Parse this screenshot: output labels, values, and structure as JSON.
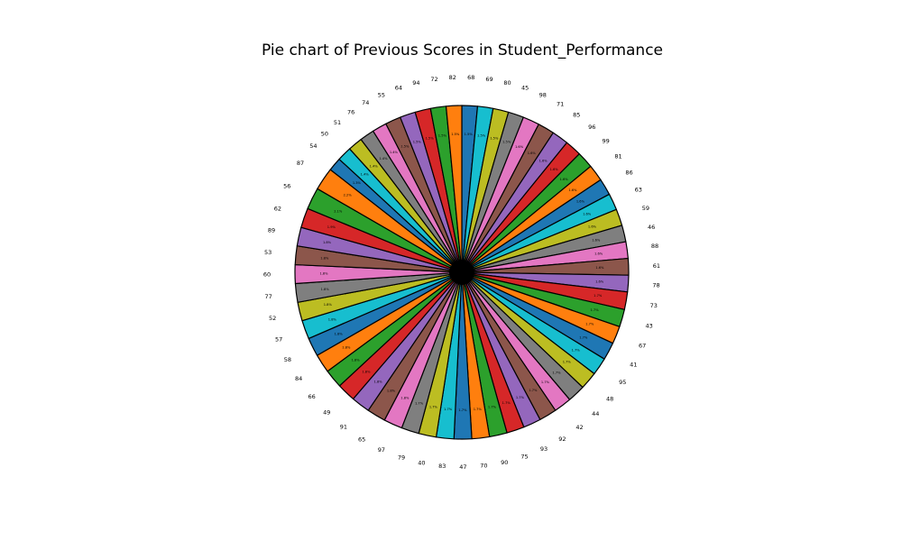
{
  "chart_data": {
    "type": "pie",
    "title": "Pie chart of Previous Scores in Student_Performance",
    "categories": [
      "68",
      "69",
      "80",
      "45",
      "98",
      "71",
      "85",
      "96",
      "99",
      "81",
      "86",
      "63",
      "59",
      "46",
      "88",
      "61",
      "78",
      "73",
      "43",
      "67",
      "41",
      "95",
      "48",
      "44",
      "42",
      "92",
      "93",
      "75",
      "90",
      "70",
      "47",
      "83",
      "40",
      "79",
      "97",
      "65",
      "91",
      "49",
      "66",
      "84",
      "58",
      "57",
      "52",
      "77",
      "60",
      "53",
      "89",
      "62",
      "56",
      "87",
      "54",
      "50",
      "51",
      "76",
      "74",
      "55",
      "64",
      "94",
      "72",
      "82"
    ],
    "values": [
      1.5,
      1.5,
      1.5,
      1.5,
      1.6,
      1.6,
      1.6,
      1.6,
      1.6,
      1.6,
      1.6,
      1.6,
      1.6,
      1.6,
      1.6,
      1.6,
      1.6,
      1.7,
      1.7,
      1.7,
      1.7,
      1.7,
      1.7,
      1.7,
      1.7,
      1.7,
      1.7,
      1.7,
      1.7,
      1.7,
      1.7,
      1.7,
      1.7,
      1.7,
      1.8,
      1.8,
      1.8,
      1.8,
      1.8,
      1.8,
      1.8,
      1.8,
      1.8,
      1.8,
      1.8,
      1.8,
      1.8,
      1.9,
      2.1,
      2.2,
      1.3,
      1.4,
      1.4,
      1.4,
      1.4,
      1.5,
      1.5,
      1.5,
      1.5,
      1.5
    ],
    "percent_labels": [
      "1.5%",
      "1.5%",
      "1.5%",
      "1.5%",
      "1.6%",
      "1.6%",
      "1.6%",
      "1.6%",
      "1.6%",
      "1.6%",
      "1.6%",
      "1.6%",
      "1.6%",
      "1.6%",
      "1.6%",
      "1.6%",
      "1.6%",
      "1.7%",
      "1.7%",
      "1.7%",
      "1.7%",
      "1.7%",
      "1.7%",
      "1.7%",
      "1.7%",
      "1.7%",
      "1.7%",
      "1.7%",
      "1.7%",
      "1.7%",
      "1.7%",
      "1.7%",
      "1.7%",
      "1.7%",
      "1.8%",
      "1.8%",
      "1.8%",
      "1.8%",
      "1.8%",
      "1.8%",
      "1.8%",
      "1.8%",
      "1.8%",
      "1.8%",
      "1.8%",
      "1.8%",
      "1.8%",
      "1.9%",
      "2.1%",
      "2.2%",
      "1.3%",
      "1.4%",
      "1.4%",
      "1.4%",
      "1.4%",
      "1.5%",
      "1.5%",
      "1.5%",
      "1.5%",
      "1.5%"
    ],
    "start": "top, clockwise",
    "colors": [
      "#1f77b4",
      "#17becf",
      "#bcbd22",
      "#7f7f7f",
      "#e377c2",
      "#8c564b",
      "#9467bd",
      "#d62728",
      "#2ca02c",
      "#ff7f0e"
    ],
    "edge_color": "#000000",
    "legend": "none"
  }
}
